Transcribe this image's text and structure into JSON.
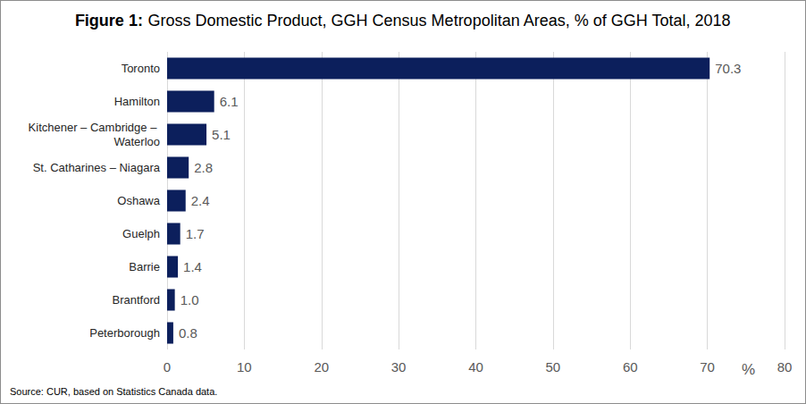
{
  "chart_data": {
    "type": "bar",
    "title": "Figure 1: Gross Domestic Product, GGH Census Metropolitan Areas, % of GGH Total, 2018",
    "categories": [
      "Toronto",
      "Hamilton",
      "Kitchener – Cambridge – Waterloo",
      "St. Catharines – Niagara",
      "Oshawa",
      "Guelph",
      "Barrie",
      "Brantford",
      "Peterborough"
    ],
    "values": [
      70.3,
      6.1,
      5.1,
      2.8,
      2.4,
      1.7,
      1.4,
      1.0,
      0.8
    ],
    "value_labels": [
      "70.3",
      "6.1",
      "5.1",
      "2.8",
      "2.4",
      "1.7",
      "1.4",
      "1.0",
      "0.8"
    ],
    "color": "#0c1f5c",
    "orientation": "horizontal",
    "data_labels": true,
    "x_label": "%",
    "xlim": [
      0,
      80
    ],
    "xticks": [
      0,
      10,
      20,
      30,
      40,
      50,
      60,
      70,
      80
    ],
    "grid": true,
    "source": "Source: CUR, based on Statistics Canada data."
  }
}
